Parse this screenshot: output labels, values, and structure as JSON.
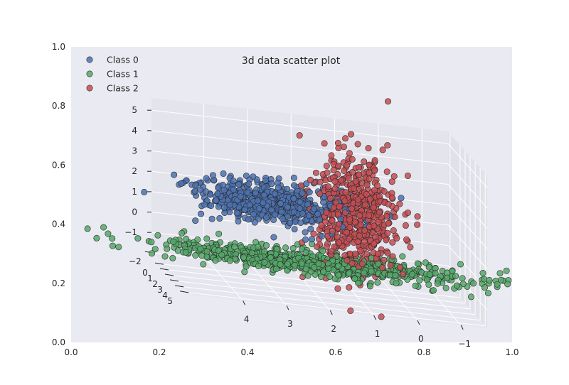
{
  "chart_data": {
    "type": "scatter",
    "subtype": "3d",
    "title": "3d data scatter plot",
    "outer_axes": {
      "xlim": [
        0.0,
        1.0
      ],
      "ylim": [
        0.0,
        1.0
      ],
      "xticks": [
        "0.0",
        "0.2",
        "0.4",
        "0.6",
        "0.8",
        "1.0"
      ],
      "yticks": [
        "0.0",
        "0.2",
        "0.4",
        "0.6",
        "0.8",
        "1.0"
      ]
    },
    "axes3d": {
      "x": {
        "ticks": [
          "4",
          "3",
          "2",
          "1",
          "0",
          "−1"
        ],
        "lim": [
          -1.6,
          5.2
        ]
      },
      "y": {
        "ticks": [
          "−2",
          "0",
          "1",
          "2",
          "3",
          "4",
          "5"
        ],
        "lim": [
          -2.4,
          5.4
        ]
      },
      "z": {
        "ticks": [
          "5",
          "4",
          "3",
          "2",
          "1",
          "0",
          "−1"
        ],
        "lim": [
          -1.9,
          5.6
        ]
      },
      "grid": true
    },
    "legend": {
      "position": "top-left"
    },
    "series": [
      {
        "name": "Class 0",
        "color": "#4c72b0",
        "centroid": {
          "x": 2.8,
          "y": 1.2,
          "z": 2.0
        },
        "spread": {
          "x": 0.9,
          "y": 0.8,
          "z": 0.45
        }
      },
      {
        "name": "Class 1",
        "color": "#55a868",
        "centroid": {
          "x": 2.0,
          "y": 2.0,
          "z": -0.5
        },
        "spread": {
          "x": 1.8,
          "y": 0.9,
          "z": 0.2
        }
      },
      {
        "name": "Class 2",
        "color": "#c44e52",
        "centroid": {
          "x": 1.0,
          "y": 1.8,
          "z": 2.0
        },
        "spread": {
          "x": 0.45,
          "y": 0.9,
          "z": 1.5
        }
      }
    ]
  }
}
